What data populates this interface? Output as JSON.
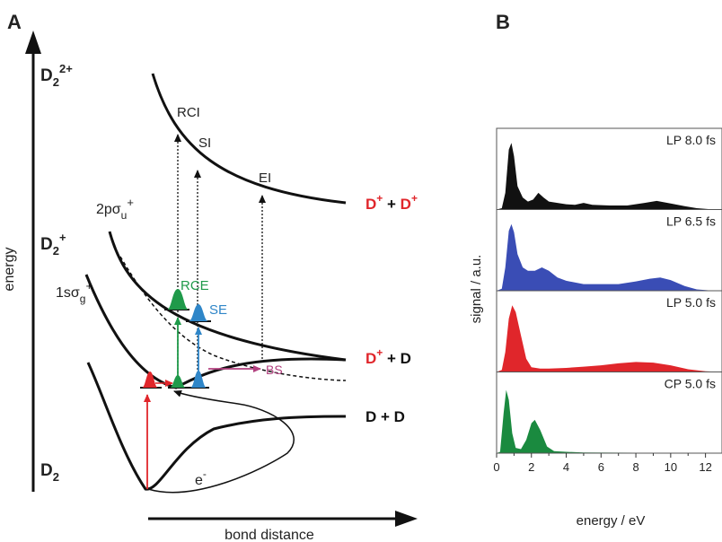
{
  "panel_a": {
    "panel_label": "A",
    "y_axis_label": "energy",
    "x_axis_label": "bond distance",
    "state_labels": {
      "d2_2plus": {
        "base": "D",
        "sub": "2",
        "sup": "2+"
      },
      "d2_plus": {
        "base": "D",
        "sub": "2",
        "sup": "+"
      },
      "d2": {
        "base": "D",
        "sub": "2"
      },
      "sigma_g": {
        "pre": "1sσ",
        "sub": "g",
        "sup": "+"
      },
      "sigma_u": {
        "pre": "2pσ",
        "sub": "u",
        "sup": "+"
      }
    },
    "asymptotes": {
      "dplus_dplus": {
        "d1": "D",
        "s1": "+",
        "mid": " + ",
        "d2": "D",
        "s2": "+"
      },
      "dplus_d": {
        "d1": "D",
        "s1": "+",
        "mid": " + D"
      },
      "d_d": "D + D"
    },
    "processes": {
      "rci": "RCI",
      "si": "SI",
      "ei": "EI",
      "rce": "RCE",
      "se": "SE",
      "bs": "BS",
      "electron": {
        "base": "e",
        "sup": "-"
      }
    },
    "colors": {
      "red": "#e0262b",
      "green": "#1f9a4a",
      "blue": "#2f86c8",
      "magenta": "#b2407f",
      "curve": "#111111"
    }
  },
  "panel_b": {
    "panel_label": "B",
    "y_axis_label": "signal / a.u.",
    "x_axis_label": "energy / eV",
    "chart_data": {
      "type": "area",
      "x_ticks": [
        0,
        2,
        4,
        6,
        8,
        10,
        12
      ],
      "xlim": [
        0,
        13
      ],
      "series": [
        {
          "name": "LP 8.0 fs",
          "color": "#111111",
          "points": [
            [
              0,
              0
            ],
            [
              0.3,
              0.02
            ],
            [
              0.5,
              0.25
            ],
            [
              0.7,
              0.9
            ],
            [
              0.85,
              1.0
            ],
            [
              1.0,
              0.8
            ],
            [
              1.2,
              0.35
            ],
            [
              1.5,
              0.18
            ],
            [
              1.8,
              0.12
            ],
            [
              2.1,
              0.15
            ],
            [
              2.4,
              0.25
            ],
            [
              2.7,
              0.18
            ],
            [
              3.0,
              0.12
            ],
            [
              3.5,
              0.1
            ],
            [
              4.0,
              0.08
            ],
            [
              4.5,
              0.07
            ],
            [
              5.0,
              0.1
            ],
            [
              5.5,
              0.07
            ],
            [
              6.5,
              0.06
            ],
            [
              7.5,
              0.06
            ],
            [
              8.5,
              0.1
            ],
            [
              9.2,
              0.13
            ],
            [
              10.0,
              0.09
            ],
            [
              10.8,
              0.05
            ],
            [
              11.5,
              0.02
            ],
            [
              12.5,
              0
            ],
            [
              13,
              0
            ]
          ]
        },
        {
          "name": "LP 6.5 fs",
          "color": "#3a4db5",
          "points": [
            [
              0,
              0
            ],
            [
              0.3,
              0.03
            ],
            [
              0.5,
              0.35
            ],
            [
              0.7,
              0.9
            ],
            [
              0.85,
              1.0
            ],
            [
              1.0,
              0.88
            ],
            [
              1.2,
              0.55
            ],
            [
              1.5,
              0.35
            ],
            [
              1.8,
              0.3
            ],
            [
              2.2,
              0.3
            ],
            [
              2.6,
              0.35
            ],
            [
              3.0,
              0.3
            ],
            [
              3.5,
              0.2
            ],
            [
              4.0,
              0.15
            ],
            [
              5.0,
              0.1
            ],
            [
              6.0,
              0.1
            ],
            [
              7.0,
              0.1
            ],
            [
              8.0,
              0.14
            ],
            [
              8.8,
              0.18
            ],
            [
              9.4,
              0.2
            ],
            [
              10.0,
              0.16
            ],
            [
              10.8,
              0.07
            ],
            [
              11.5,
              0.02
            ],
            [
              12.5,
              0
            ],
            [
              13,
              0
            ]
          ]
        },
        {
          "name": "LP 5.0 fs",
          "color": "#e0262b",
          "points": [
            [
              0,
              0
            ],
            [
              0.3,
              0.03
            ],
            [
              0.5,
              0.3
            ],
            [
              0.7,
              0.8
            ],
            [
              0.9,
              1.0
            ],
            [
              1.1,
              0.9
            ],
            [
              1.4,
              0.55
            ],
            [
              1.7,
              0.2
            ],
            [
              2.0,
              0.07
            ],
            [
              2.5,
              0.05
            ],
            [
              3.0,
              0.05
            ],
            [
              4.0,
              0.06
            ],
            [
              5.0,
              0.08
            ],
            [
              6.0,
              0.1
            ],
            [
              7.0,
              0.13
            ],
            [
              8.0,
              0.15
            ],
            [
              9.0,
              0.14
            ],
            [
              10.0,
              0.1
            ],
            [
              11.0,
              0.04
            ],
            [
              12.0,
              0.01
            ],
            [
              13,
              0
            ]
          ]
        },
        {
          "name": "CP 5.0 fs",
          "color": "#1a8a3f",
          "points": [
            [
              0,
              0
            ],
            [
              0.2,
              0.02
            ],
            [
              0.4,
              0.6
            ],
            [
              0.55,
              0.95
            ],
            [
              0.7,
              0.8
            ],
            [
              0.9,
              0.3
            ],
            [
              1.1,
              0.08
            ],
            [
              1.4,
              0.06
            ],
            [
              1.7,
              0.2
            ],
            [
              2.0,
              0.45
            ],
            [
              2.2,
              0.5
            ],
            [
              2.5,
              0.35
            ],
            [
              2.9,
              0.1
            ],
            [
              3.3,
              0.03
            ],
            [
              4.0,
              0.02
            ],
            [
              5.0,
              0.01
            ],
            [
              13,
              0
            ]
          ]
        }
      ]
    }
  }
}
